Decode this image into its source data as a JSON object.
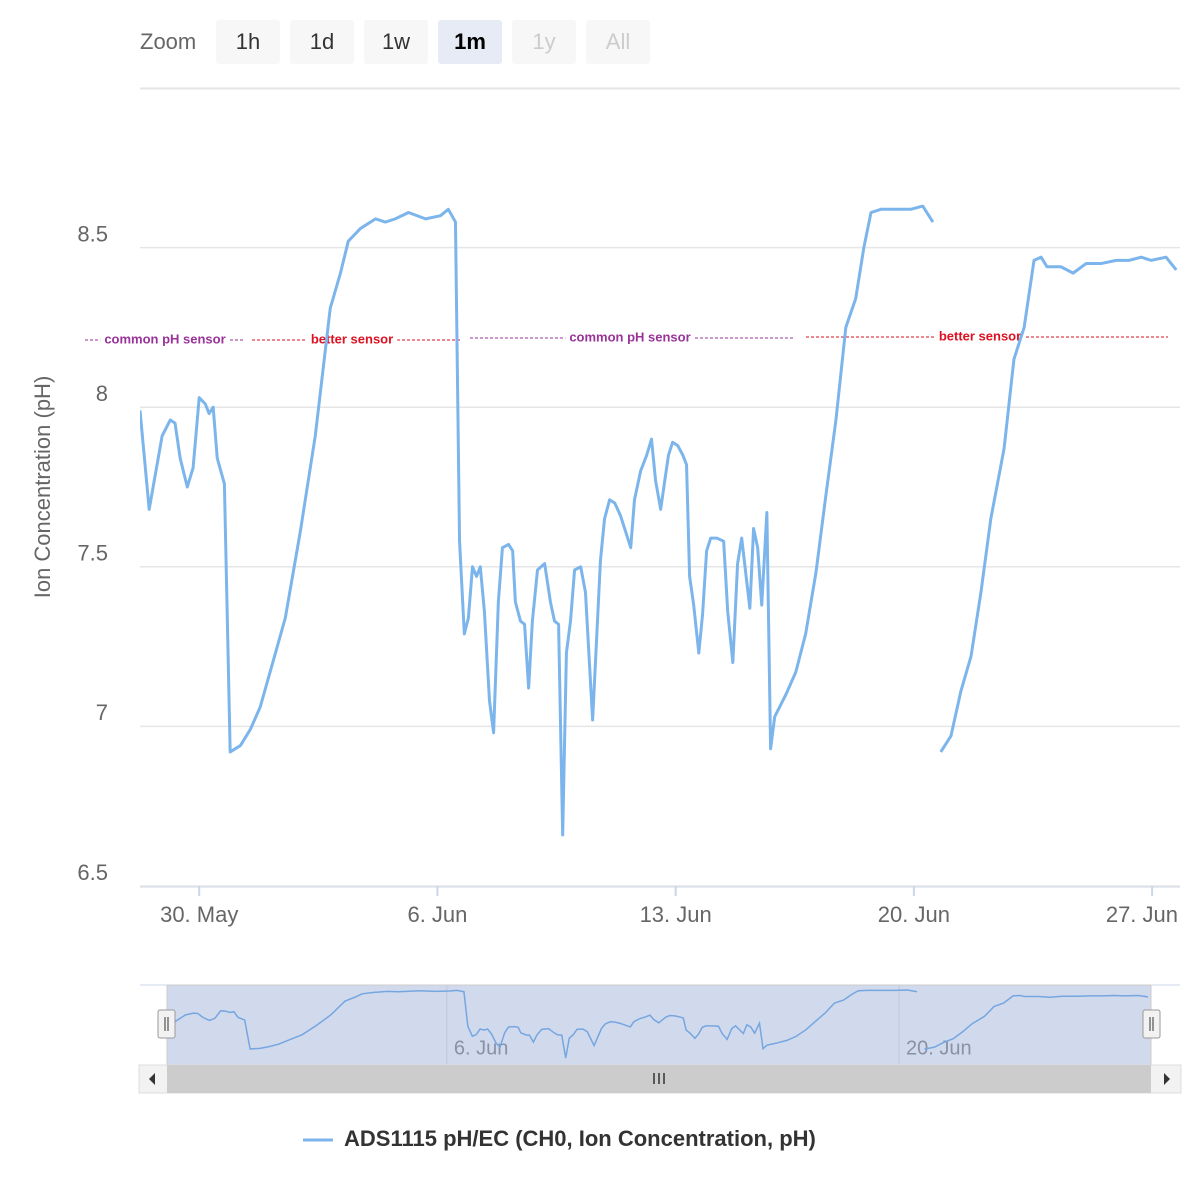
{
  "chart_data": {
    "type": "line",
    "range_selector": {
      "label": "Zoom",
      "buttons": [
        {
          "text": "1h",
          "state": "normal"
        },
        {
          "text": "1d",
          "state": "normal"
        },
        {
          "text": "1w",
          "state": "normal"
        },
        {
          "text": "1m",
          "state": "selected"
        },
        {
          "text": "1y",
          "state": "disabled"
        },
        {
          "text": "All",
          "state": "disabled"
        }
      ]
    },
    "y_axis_label": "Ion Concentration (pH)",
    "x": [
      28.26,
      28.53,
      28.91,
      29.15,
      29.29,
      29.44,
      29.65,
      29.82,
      30.0,
      30.18,
      30.29,
      30.41,
      30.53,
      30.74,
      30.91,
      31.21,
      31.5,
      31.79,
      32.24,
      32.53,
      32.97,
      33.41,
      33.85,
      34.15,
      34.38,
      34.74,
      35.18,
      35.47,
      35.76,
      36.15,
      36.65,
      37.09,
      37.32,
      37.53,
      37.65,
      37.79,
      37.91,
      38.03,
      38.15,
      38.26,
      38.38,
      38.53,
      38.65,
      38.79,
      38.91,
      39.09,
      39.21,
      39.29,
      39.44,
      39.56,
      39.68,
      39.79,
      39.94,
      40.15,
      40.32,
      40.44,
      40.56,
      40.68,
      40.79,
      40.91,
      41.03,
      41.21,
      41.35,
      41.56,
      41.79,
      41.91,
      42.06,
      42.21,
      42.38,
      42.53,
      42.68,
      42.79,
      42.97,
      43.15,
      43.29,
      43.41,
      43.56,
      43.68,
      43.79,
      43.91,
      44.06,
      44.21,
      44.32,
      44.41,
      44.53,
      44.68,
      44.79,
      44.91,
      45.03,
      45.21,
      45.41,
      45.53,
      45.68,
      45.82,
      45.94,
      46.06,
      46.18,
      46.29,
      46.41,
      46.53,
      46.68,
      46.79,
      46.91,
      47.24,
      47.53,
      47.82,
      48.12,
      48.41,
      48.71,
      49.0,
      49.29,
      49.53,
      49.74,
      50.03,
      50.47,
      50.91,
      51.26,
      51.56,
      51.68,
      51.79,
      52.09,
      52.38,
      52.68,
      52.97,
      53.26,
      53.65,
      53.94,
      54.24,
      54.53,
      54.74,
      54.91,
      55.32,
      55.68,
      56.06,
      56.5,
      56.94,
      57.32,
      57.68,
      57.97,
      58.41,
      58.71
    ],
    "series": [
      {
        "name": "ADS1115 pH/EC (CH0, Ion Concentration, pH)",
        "color": "#7cb5ec",
        "values": [
          7.99,
          7.68,
          7.91,
          7.96,
          7.95,
          7.84,
          7.75,
          7.81,
          8.03,
          8.01,
          7.98,
          8.0,
          7.84,
          7.76,
          6.92,
          6.94,
          6.99,
          7.06,
          7.23,
          7.34,
          7.61,
          7.91,
          8.31,
          8.42,
          8.52,
          8.56,
          8.59,
          8.58,
          8.59,
          8.61,
          8.59,
          8.6,
          8.62,
          8.58,
          7.58,
          7.29,
          7.34,
          7.5,
          7.47,
          7.5,
          7.36,
          7.08,
          6.98,
          7.39,
          7.56,
          7.57,
          7.55,
          7.39,
          7.33,
          7.32,
          7.12,
          7.33,
          7.49,
          7.51,
          7.39,
          7.33,
          7.32,
          6.66,
          7.23,
          7.33,
          7.49,
          7.5,
          7.42,
          7.02,
          7.52,
          7.65,
          7.71,
          7.7,
          7.66,
          7.61,
          7.56,
          7.71,
          7.8,
          7.85,
          7.9,
          7.77,
          7.68,
          7.77,
          7.85,
          7.89,
          7.88,
          7.85,
          7.82,
          7.47,
          7.38,
          7.23,
          7.35,
          7.55,
          7.59,
          7.59,
          7.58,
          7.36,
          7.2,
          7.51,
          7.59,
          7.48,
          7.37,
          7.62,
          7.56,
          7.38,
          7.67,
          6.93,
          7.03,
          7.1,
          7.17,
          7.29,
          7.48,
          7.72,
          7.96,
          8.25,
          8.34,
          8.5,
          8.61,
          8.62,
          8.62,
          8.62,
          8.63,
          8.58,
          null,
          6.92,
          6.97,
          7.11,
          7.22,
          7.42,
          7.65,
          7.87,
          8.15,
          8.25,
          8.46,
          8.47,
          8.44,
          8.44,
          8.42,
          8.45,
          8.45,
          8.46,
          8.46,
          8.47,
          8.46,
          8.47,
          8.43
        ]
      }
    ],
    "xlim": [
      28.26,
      58.82
    ],
    "xticks": [
      {
        "value": 30,
        "label": "30. May"
      },
      {
        "value": 37,
        "label": "6. Jun"
      },
      {
        "value": 44,
        "label": "13. Jun"
      },
      {
        "value": 51,
        "label": "20. Jun"
      },
      {
        "value": 58,
        "label": "27. Jun"
      }
    ],
    "ylim": [
      6.5,
      9.0
    ],
    "yticks": [
      6.5,
      7,
      7.5,
      8,
      8.5
    ],
    "grid": true,
    "annotations": [
      {
        "text": "common pH sensor",
        "color": "#993399"
      },
      {
        "text": "better sensor",
        "color": "#dd1122"
      },
      {
        "text": "common pH sensor",
        "color": "#993399"
      },
      {
        "text": "better sensor",
        "color": "#dd1122"
      }
    ],
    "navigator": {
      "xlim": [
        27.5,
        59.7
      ],
      "xticks": [
        {
          "value": 37,
          "label": "6. Jun"
        },
        {
          "value": 51,
          "label": "20. Jun"
        }
      ]
    }
  }
}
